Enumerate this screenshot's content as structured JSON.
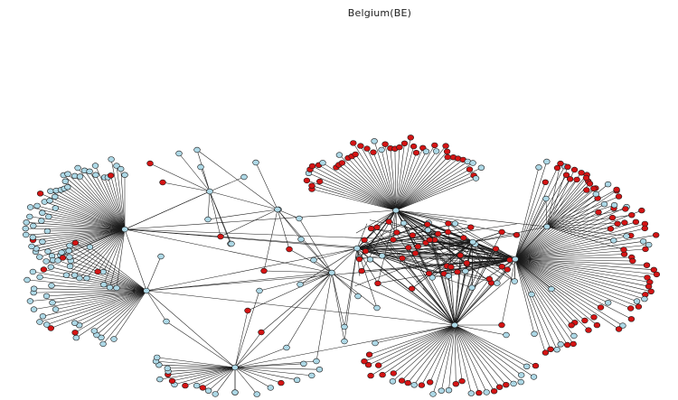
{
  "title": "Belgium(BE)",
  "colors": {
    "edge": "#1a1a1a",
    "node_light": "#add8e6",
    "node_red": "#d41414",
    "node_stroke": "#1c1c1c"
  }
}
